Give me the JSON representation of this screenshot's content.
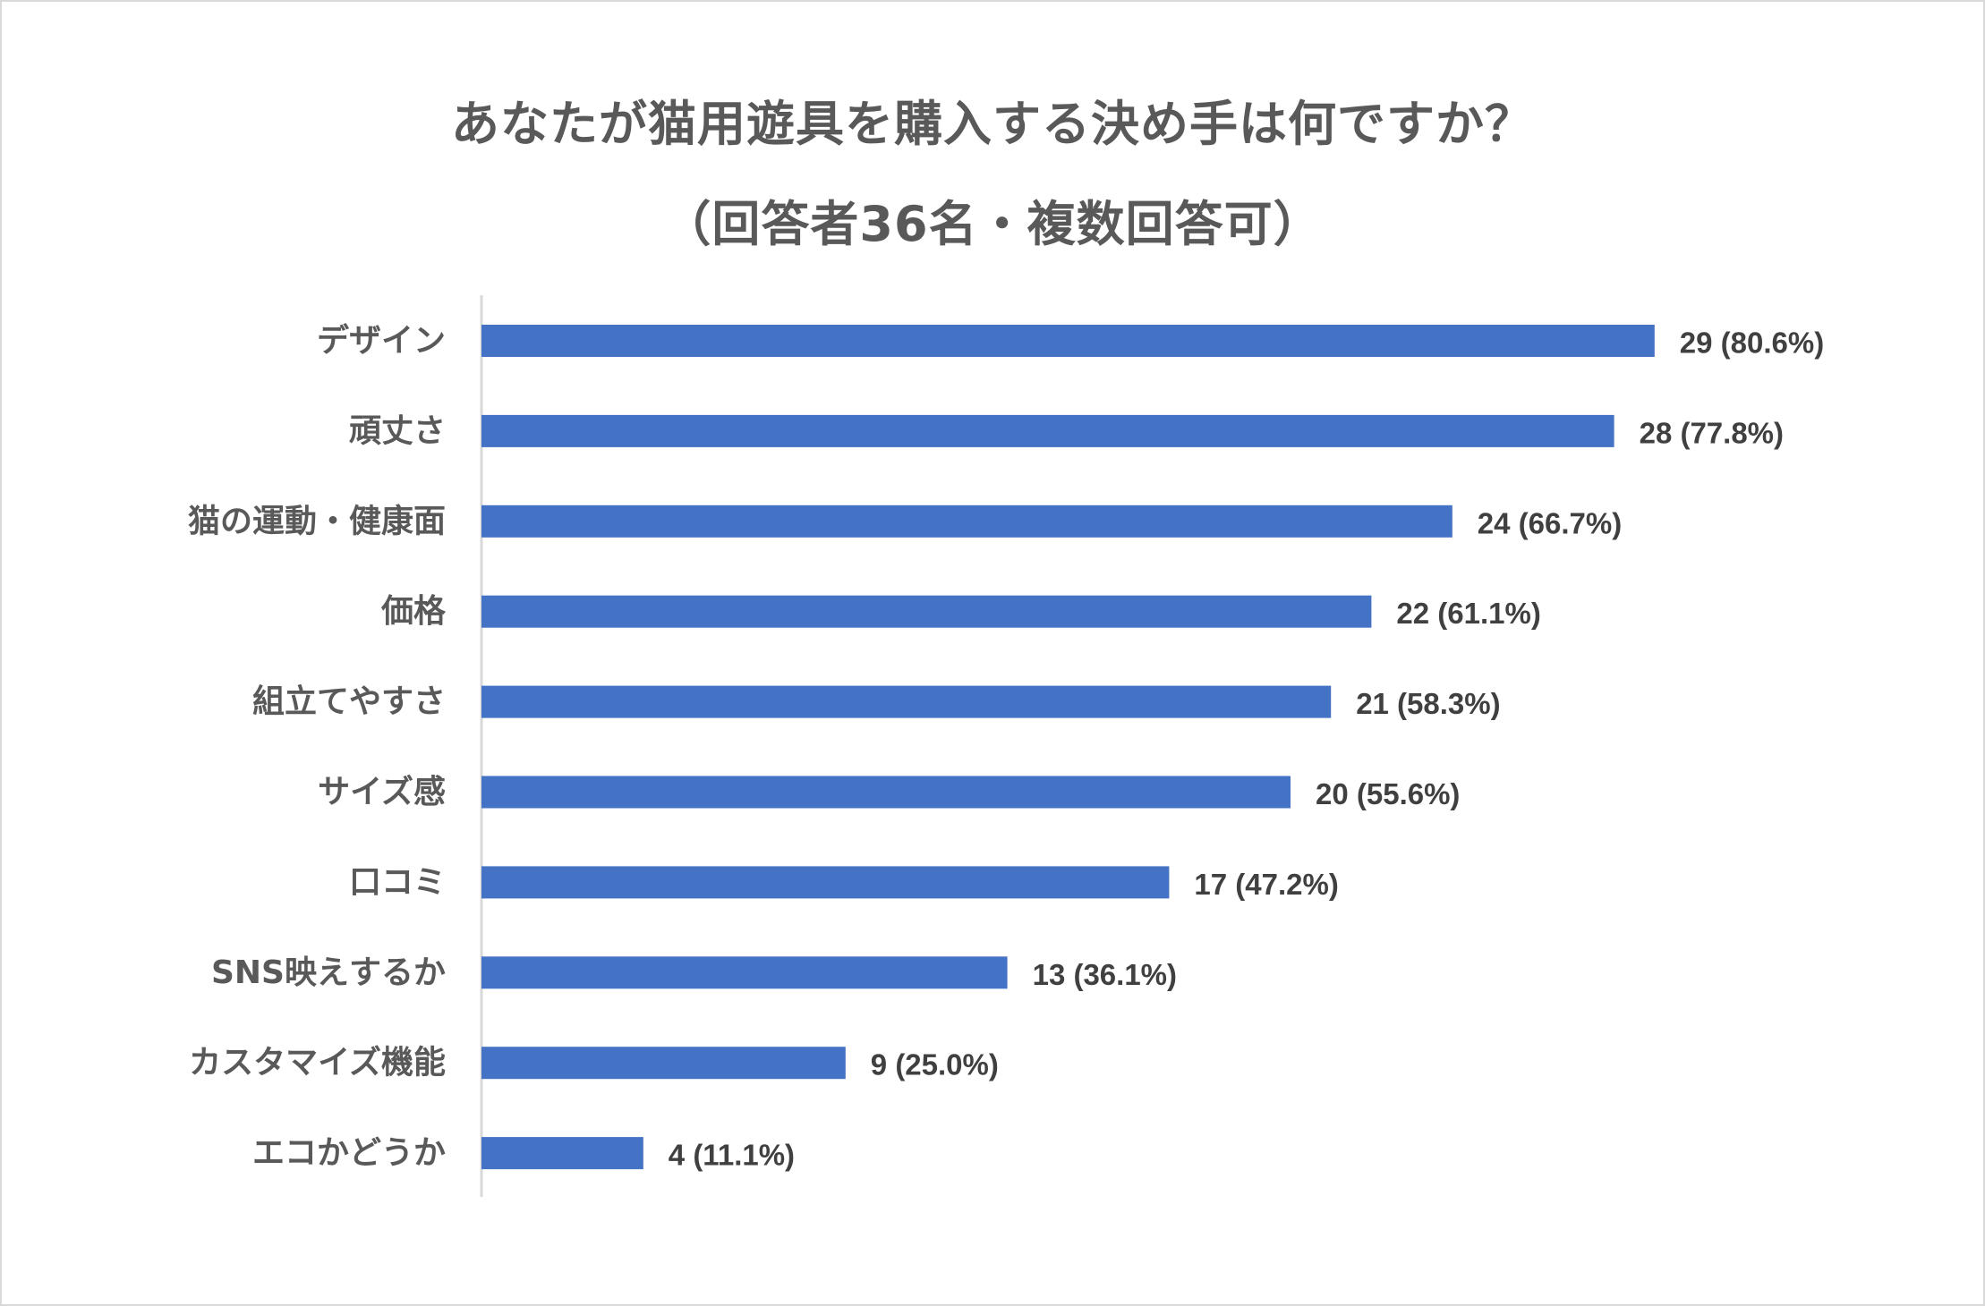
{
  "chart_data": {
    "type": "bar",
    "orientation": "horizontal",
    "title": "あなたが猫用遊具を購入する決め手は何ですか？",
    "subtitle": "（回答者36名・複数回答可）",
    "categories": [
      "デザイン",
      "頑丈さ",
      "猫の運動・健康面",
      "価格",
      "組立てやすさ",
      "サイズ感",
      "口コミ",
      "SNS映えするか",
      "カスタマイズ機能",
      "エコかどうか"
    ],
    "values": [
      29,
      28,
      24,
      22,
      21,
      20,
      17,
      13,
      9,
      4
    ],
    "data_labels": [
      "29 (80.6%)",
      "28 (77.8%)",
      "24 (66.7%)",
      "22 (61.1%)",
      "21 (58.3%)",
      "20 (55.6%)",
      "17 (47.2%)",
      "13 (36.1%)",
      "9 (25.0%)",
      "4 (11.1%)"
    ],
    "xlim": [
      0,
      34
    ],
    "grid": false,
    "legend": "none",
    "bar_color": "#4472c4",
    "axis_color": "#d9d9d9"
  }
}
